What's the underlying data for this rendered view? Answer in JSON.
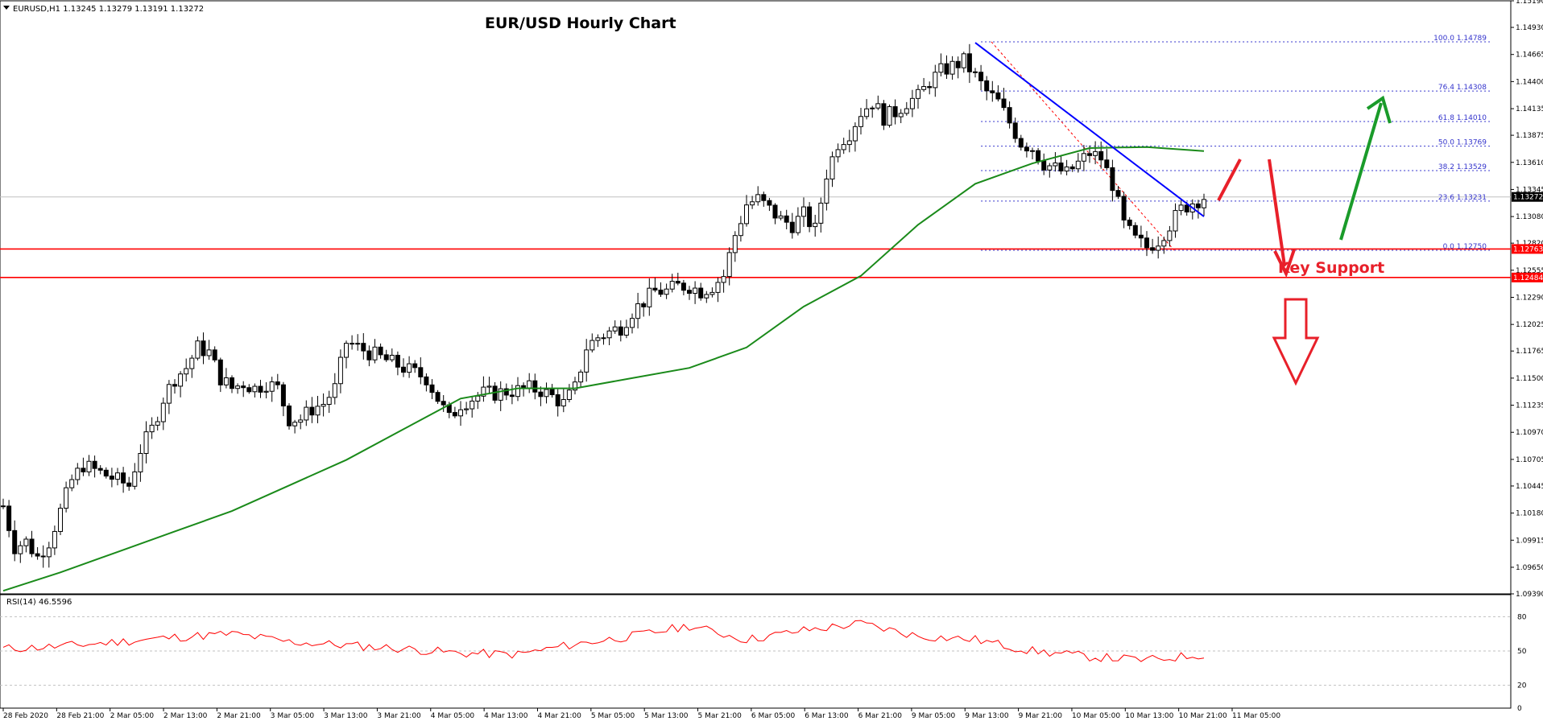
{
  "header": {
    "symbol_info": "EURUSD,H1  1.13245 1.13279 1.13191 1.13272",
    "title": "EUR/USD Hourly Chart"
  },
  "colors": {
    "background": "#ffffff",
    "candle": "#000000",
    "ma": "#1a8a1a",
    "trendline": "#0000ff",
    "fib": "#3333cc",
    "support": "#ff0000",
    "arrow_red": "#e8202a",
    "arrow_green": "#1a9b2a",
    "rsi": "#ff0000",
    "price_label_bg": "#ff0000",
    "current_price_bg": "#000000"
  },
  "labels": {
    "key_support": "Key Support",
    "rsi_header": "RSI(14) 46.5596",
    "current_price": "1.13272",
    "support_upper": "1.12763",
    "support_lower": "1.12484"
  },
  "chart_data": {
    "type": "candlestick",
    "title": "EUR/USD Hourly Chart",
    "ylim": [
      1.0939,
      1.1519
    ],
    "y_ticks": [
      "1.15190",
      "1.14930",
      "1.14665",
      "1.14400",
      "1.14135",
      "1.13875",
      "1.13610",
      "1.13345",
      "1.13080",
      "1.12820",
      "1.12555",
      "1.12290",
      "1.12025",
      "1.11765",
      "1.11500",
      "1.11235",
      "1.10970",
      "1.10705",
      "1.10445",
      "1.10180",
      "1.09915",
      "1.09650",
      "1.09390"
    ],
    "x_ticks": [
      "28 Feb 2020",
      "28 Feb 21:00",
      "2 Mar 05:00",
      "2 Mar 13:00",
      "2 Mar 21:00",
      "3 Mar 05:00",
      "3 Mar 13:00",
      "3 Mar 21:00",
      "4 Mar 05:00",
      "4 Mar 13:00",
      "4 Mar 21:00",
      "5 Mar 05:00",
      "5 Mar 13:00",
      "5 Mar 21:00",
      "6 Mar 05:00",
      "6 Mar 13:00",
      "6 Mar 21:00",
      "9 Mar 05:00",
      "9 Mar 13:00",
      "9 Mar 21:00",
      "10 Mar 05:00",
      "10 Mar 13:00",
      "10 Mar 21:00",
      "11 Mar 05:00"
    ],
    "close_path": [
      [
        0,
        1.1025
      ],
      [
        2,
        1.0985
      ],
      [
        4,
        1.099
      ],
      [
        6,
        1.0975
      ],
      [
        8,
        1.099
      ],
      [
        10,
        1.102
      ],
      [
        12,
        1.105
      ],
      [
        14,
        1.1065
      ],
      [
        16,
        1.106
      ],
      [
        18,
        1.1055
      ],
      [
        20,
        1.105
      ],
      [
        22,
        1.1045
      ],
      [
        24,
        1.108
      ],
      [
        26,
        1.11
      ],
      [
        28,
        1.113
      ],
      [
        30,
        1.115
      ],
      [
        32,
        1.116
      ],
      [
        34,
        1.118
      ],
      [
        36,
        1.1175
      ],
      [
        38,
        1.115
      ],
      [
        40,
        1.114
      ],
      [
        42,
        1.1145
      ],
      [
        44,
        1.114
      ],
      [
        46,
        1.1145
      ],
      [
        48,
        1.114
      ],
      [
        50,
        1.111
      ],
      [
        52,
        1.111
      ],
      [
        54,
        1.112
      ],
      [
        56,
        1.1125
      ],
      [
        58,
        1.114
      ],
      [
        60,
        1.1185
      ],
      [
        62,
        1.118
      ],
      [
        64,
        1.1175
      ],
      [
        66,
        1.117
      ],
      [
        68,
        1.1165
      ],
      [
        70,
        1.116
      ],
      [
        72,
        1.1155
      ],
      [
        74,
        1.115
      ],
      [
        76,
        1.113
      ],
      [
        78,
        1.111
      ],
      [
        80,
        1.1125
      ],
      [
        82,
        1.113
      ],
      [
        84,
        1.1135
      ],
      [
        86,
        1.1135
      ],
      [
        88,
        1.1137
      ],
      [
        90,
        1.1138
      ],
      [
        92,
        1.114
      ],
      [
        94,
        1.1138
      ],
      [
        96,
        1.1132
      ],
      [
        98,
        1.1125
      ],
      [
        100,
        1.114
      ],
      [
        102,
        1.118
      ],
      [
        104,
        1.119
      ],
      [
        106,
        1.1195
      ],
      [
        108,
        1.12
      ],
      [
        110,
        1.1215
      ],
      [
        112,
        1.1225
      ],
      [
        114,
        1.1235
      ],
      [
        116,
        1.1235
      ],
      [
        118,
        1.124
      ],
      [
        120,
        1.124
      ],
      [
        122,
        1.1235
      ],
      [
        124,
        1.124
      ],
      [
        126,
        1.125
      ],
      [
        128,
        1.129
      ],
      [
        130,
        1.132
      ],
      [
        132,
        1.1325
      ],
      [
        134,
        1.1315
      ],
      [
        136,
        1.1305
      ],
      [
        138,
        1.13
      ],
      [
        140,
        1.131
      ],
      [
        142,
        1.1295
      ],
      [
        144,
        1.135
      ],
      [
        146,
        1.138
      ],
      [
        148,
        1.139
      ],
      [
        150,
        1.141
      ],
      [
        152,
        1.142
      ],
      [
        154,
        1.1405
      ],
      [
        156,
        1.141
      ],
      [
        158,
        1.142
      ],
      [
        160,
        1.1425
      ],
      [
        162,
        1.144
      ],
      [
        164,
        1.145
      ],
      [
        166,
        1.1455
      ],
      [
        168,
        1.146
      ],
      [
        170,
        1.1445
      ],
      [
        172,
        1.143
      ],
      [
        174,
        1.142
      ],
      [
        176,
        1.14
      ],
      [
        178,
        1.138
      ],
      [
        180,
        1.1375
      ],
      [
        182,
        1.136
      ],
      [
        184,
        1.1355
      ],
      [
        186,
        1.135
      ],
      [
        188,
        1.136
      ],
      [
        190,
        1.137
      ],
      [
        192,
        1.1365
      ],
      [
        194,
        1.134
      ],
      [
        196,
        1.13
      ],
      [
        198,
        1.1285
      ],
      [
        200,
        1.1278
      ],
      [
        202,
        1.1285
      ],
      [
        204,
        1.13
      ],
      [
        206,
        1.1315
      ],
      [
        208,
        1.1322
      ],
      [
        210,
        1.1327
      ]
    ],
    "series": [
      {
        "name": "Moving Average",
        "points": [
          [
            0,
            1.0942
          ],
          [
            10,
            1.096
          ],
          [
            20,
            1.098
          ],
          [
            30,
            1.1
          ],
          [
            40,
            1.102
          ],
          [
            50,
            1.1045
          ],
          [
            60,
            1.107
          ],
          [
            70,
            1.11
          ],
          [
            80,
            1.113
          ],
          [
            90,
            1.114
          ],
          [
            100,
            1.114
          ],
          [
            110,
            1.115
          ],
          [
            120,
            1.116
          ],
          [
            130,
            1.118
          ],
          [
            140,
            1.122
          ],
          [
            150,
            1.125
          ],
          [
            160,
            1.13
          ],
          [
            170,
            1.134
          ],
          [
            180,
            1.136
          ],
          [
            190,
            1.1375
          ],
          [
            200,
            1.1376
          ],
          [
            210,
            1.1372
          ]
        ]
      }
    ],
    "trendline": {
      "start": [
        170,
        1.1478
      ],
      "end": [
        210,
        1.1308
      ]
    },
    "fibonacci": {
      "x_range": [
        171,
        260
      ],
      "levels": [
        {
          "label": "100.0 1.14789",
          "value": 1.14789
        },
        {
          "label": "76.4 1.14308",
          "value": 1.14308
        },
        {
          "label": "61.8 1.14010",
          "value": 1.1401
        },
        {
          "label": "50.0 1.13769",
          "value": 1.13769
        },
        {
          "label": "38.2 1.13529",
          "value": 1.13529
        },
        {
          "label": "23.6 1.13231",
          "value": 1.13231
        },
        {
          "label": "0.0 1.12750",
          "value": 1.1275
        }
      ]
    },
    "support_levels": [
      1.12763,
      1.12484
    ],
    "rsi": {
      "label": "RSI(14) 46.5596",
      "ylim": [
        0,
        100
      ],
      "y_ticks": [
        "80",
        "50",
        "20",
        "0"
      ],
      "points": [
        [
          0,
          52
        ],
        [
          10,
          54
        ],
        [
          20,
          58
        ],
        [
          30,
          62
        ],
        [
          40,
          65
        ],
        [
          50,
          58
        ],
        [
          60,
          55
        ],
        [
          70,
          52
        ],
        [
          80,
          48
        ],
        [
          90,
          47
        ],
        [
          100,
          56
        ],
        [
          110,
          63
        ],
        [
          120,
          72
        ],
        [
          130,
          60
        ],
        [
          140,
          68
        ],
        [
          150,
          74
        ],
        [
          160,
          63
        ],
        [
          170,
          60
        ],
        [
          180,
          50
        ],
        [
          190,
          45
        ],
        [
          200,
          42
        ],
        [
          210,
          47
        ]
      ]
    }
  }
}
